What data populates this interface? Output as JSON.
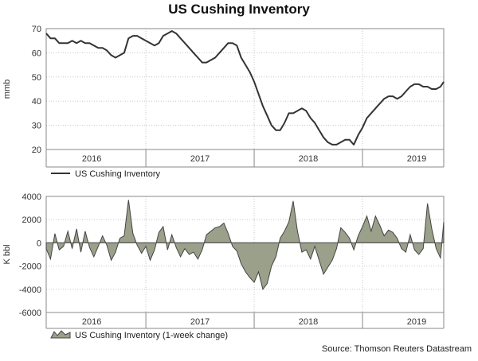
{
  "source": "Source: Thomson Reuters Datastream",
  "chart_data": [
    {
      "type": "line",
      "title": "US Cushing Inventory",
      "ylabel": "mmb",
      "ylim": [
        20,
        70
      ],
      "yticks": [
        20,
        30,
        40,
        50,
        60,
        70
      ],
      "xlim": [
        2015.58,
        2019.25
      ],
      "x_tick_labels": [
        {
          "label": "2016",
          "x": 2016.0
        },
        {
          "label": "2017",
          "x": 2017.0
        },
        {
          "label": "2018",
          "x": 2018.0
        },
        {
          "label": "2019",
          "x": 2019.0
        }
      ],
      "year_boundaries": [
        2016.5,
        2017.5,
        2018.5
      ],
      "grid": true,
      "legend_position": "bottom-left",
      "series": [
        {
          "name": "US Cushing Inventory",
          "color": "#333333",
          "x": [
            2015.58,
            2015.62,
            2015.66,
            2015.7,
            2015.74,
            2015.78,
            2015.82,
            2015.86,
            2015.9,
            2015.94,
            2015.98,
            2016.02,
            2016.06,
            2016.1,
            2016.14,
            2016.18,
            2016.22,
            2016.26,
            2016.3,
            2016.34,
            2016.38,
            2016.42,
            2016.46,
            2016.5,
            2016.54,
            2016.58,
            2016.62,
            2016.66,
            2016.7,
            2016.74,
            2016.78,
            2016.82,
            2016.86,
            2016.9,
            2016.94,
            2016.98,
            2017.02,
            2017.06,
            2017.1,
            2017.14,
            2017.18,
            2017.22,
            2017.26,
            2017.3,
            2017.34,
            2017.38,
            2017.42,
            2017.46,
            2017.5,
            2017.54,
            2017.58,
            2017.62,
            2017.66,
            2017.7,
            2017.74,
            2017.78,
            2017.82,
            2017.86,
            2017.9,
            2017.94,
            2017.98,
            2018.02,
            2018.06,
            2018.1,
            2018.14,
            2018.18,
            2018.22,
            2018.26,
            2018.3,
            2018.34,
            2018.38,
            2018.42,
            2018.46,
            2018.5,
            2018.54,
            2018.58,
            2018.62,
            2018.66,
            2018.7,
            2018.74,
            2018.78,
            2018.82,
            2018.86,
            2018.9,
            2018.94,
            2018.98,
            2019.02,
            2019.06,
            2019.1,
            2019.14,
            2019.18,
            2019.22,
            2019.25
          ],
          "values": [
            68,
            66,
            66,
            64,
            64,
            64,
            65,
            64,
            65,
            64,
            64,
            63,
            62,
            62,
            61,
            59,
            58,
            59,
            60,
            66,
            67,
            67,
            66,
            65,
            64,
            63,
            64,
            67,
            68,
            69,
            68,
            66,
            64,
            62,
            60,
            58,
            56,
            56,
            57,
            58,
            60,
            62,
            64,
            64,
            63,
            58,
            55,
            52,
            48,
            43,
            38,
            34,
            30,
            28,
            28,
            31,
            35,
            35,
            36,
            37,
            36,
            33,
            31,
            28,
            25,
            23,
            22,
            22,
            23,
            24,
            24,
            22,
            26,
            29,
            33,
            35,
            37,
            39,
            41,
            42,
            42,
            41,
            42,
            44,
            46,
            47,
            47,
            46,
            46,
            45,
            45,
            46,
            48
          ]
        }
      ]
    },
    {
      "type": "area",
      "ylabel": "K bbl",
      "ylim": [
        -6000,
        4000
      ],
      "yticks": [
        -6000,
        -4000,
        -2000,
        0,
        2000,
        4000
      ],
      "xlim": [
        2015.58,
        2019.25
      ],
      "x_tick_labels": [
        {
          "label": "2016",
          "x": 2016.0
        },
        {
          "label": "2017",
          "x": 2017.0
        },
        {
          "label": "2018",
          "x": 2018.0
        },
        {
          "label": "2019",
          "x": 2019.0
        }
      ],
      "year_boundaries": [
        2016.5,
        2017.5,
        2018.5
      ],
      "grid": true,
      "legend_position": "bottom-left",
      "series": [
        {
          "name": "US Cushing Inventory (1-week change)",
          "color": "#9aa08a",
          "edge_color": "#444444",
          "x": [
            2015.58,
            2015.62,
            2015.66,
            2015.7,
            2015.74,
            2015.78,
            2015.82,
            2015.86,
            2015.9,
            2015.94,
            2015.98,
            2016.02,
            2016.06,
            2016.1,
            2016.14,
            2016.18,
            2016.22,
            2016.26,
            2016.3,
            2016.34,
            2016.38,
            2016.42,
            2016.46,
            2016.5,
            2016.54,
            2016.58,
            2016.62,
            2016.66,
            2016.7,
            2016.74,
            2016.78,
            2016.82,
            2016.86,
            2016.9,
            2016.94,
            2016.98,
            2017.02,
            2017.06,
            2017.1,
            2017.14,
            2017.18,
            2017.22,
            2017.26,
            2017.3,
            2017.34,
            2017.38,
            2017.42,
            2017.46,
            2017.5,
            2017.54,
            2017.58,
            2017.62,
            2017.66,
            2017.7,
            2017.74,
            2017.78,
            2017.82,
            2017.86,
            2017.9,
            2017.94,
            2017.98,
            2018.02,
            2018.06,
            2018.1,
            2018.14,
            2018.18,
            2018.22,
            2018.26,
            2018.3,
            2018.34,
            2018.38,
            2018.42,
            2018.46,
            2018.5,
            2018.54,
            2018.58,
            2018.62,
            2018.66,
            2018.7,
            2018.74,
            2018.78,
            2018.82,
            2018.86,
            2018.9,
            2018.94,
            2018.98,
            2019.02,
            2019.06,
            2019.1,
            2019.14,
            2019.18,
            2019.22,
            2019.25
          ],
          "values": [
            -500,
            -1400,
            800,
            -600,
            -300,
            1000,
            -500,
            1200,
            -800,
            1000,
            -400,
            -1200,
            -300,
            600,
            -200,
            -1500,
            -800,
            400,
            600,
            3700,
            800,
            -200,
            -900,
            -300,
            -1500,
            -600,
            900,
            1400,
            -600,
            700,
            -400,
            -1200,
            -500,
            -1000,
            -800,
            -1400,
            -600,
            700,
            1000,
            1300,
            1400,
            1700,
            800,
            -300,
            -700,
            -1800,
            -2500,
            -3000,
            -3400,
            -2500,
            -4000,
            -3500,
            -2000,
            -1200,
            400,
            1000,
            1800,
            3600,
            1000,
            -800,
            -600,
            -1400,
            -300,
            -1500,
            -2700,
            -2100,
            -1500,
            -500,
            1300,
            900,
            400,
            -600,
            600,
            1400,
            2300,
            1000,
            2300,
            1500,
            600,
            1100,
            900,
            400,
            -500,
            -800,
            700,
            -600,
            -1000,
            -500,
            3400,
            1200,
            -500,
            -1300,
            1800
          ]
        }
      ]
    }
  ]
}
